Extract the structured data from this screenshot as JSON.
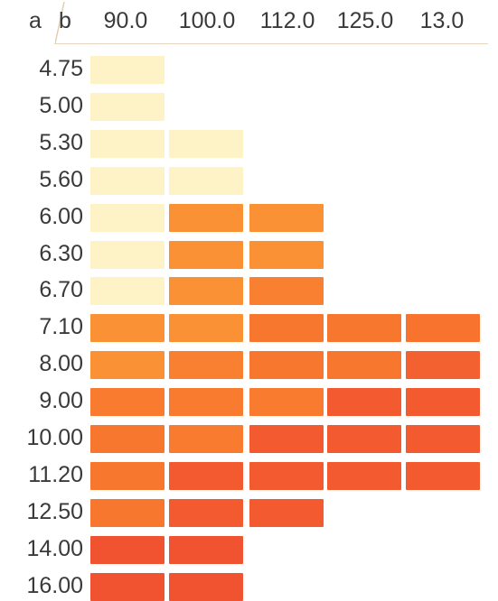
{
  "chart_data": {
    "type": "heatmap",
    "corner_row_label": "a",
    "corner_col_label": "b",
    "columns": [
      "90.0",
      "100.0",
      "112.0",
      "125.0",
      "13.0"
    ],
    "rows": [
      "4.75",
      "5.00",
      "5.30",
      "5.60",
      "6.00",
      "6.30",
      "6.70",
      "7.10",
      "8.00",
      "9.00",
      "10.00",
      "11.20",
      "12.50",
      "14.00",
      "16.00"
    ],
    "values": [
      [
        0.05,
        null,
        null,
        null,
        null
      ],
      [
        0.05,
        null,
        null,
        null,
        null
      ],
      [
        0.05,
        0.05,
        null,
        null,
        null
      ],
      [
        0.05,
        0.05,
        null,
        null,
        null
      ],
      [
        0.05,
        0.45,
        0.45,
        null,
        null
      ],
      [
        0.05,
        0.45,
        0.45,
        null,
        null
      ],
      [
        0.05,
        0.45,
        0.55,
        null,
        null
      ],
      [
        0.45,
        0.45,
        0.6,
        0.6,
        0.62
      ],
      [
        0.45,
        0.55,
        0.6,
        0.6,
        0.75
      ],
      [
        0.58,
        0.58,
        0.58,
        0.8,
        0.8
      ],
      [
        0.6,
        0.58,
        0.8,
        0.8,
        0.8
      ],
      [
        0.6,
        0.8,
        0.8,
        0.8,
        0.8
      ],
      [
        0.6,
        0.8,
        0.8,
        null,
        null
      ],
      [
        0.85,
        0.85,
        null,
        null,
        null
      ],
      [
        0.85,
        0.85,
        null,
        null,
        null
      ]
    ],
    "color_scale": [
      "#fdf6cf",
      "#fde9ad",
      "#fa9a37",
      "#f8772e",
      "#f35a30",
      "#ec3b2e"
    ],
    "grid": false
  }
}
